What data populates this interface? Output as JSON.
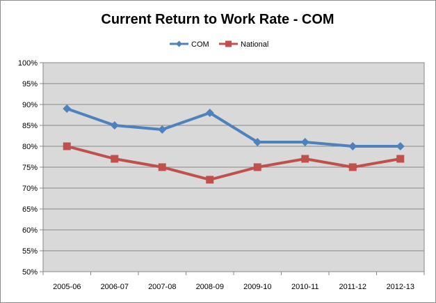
{
  "chart_data": {
    "type": "line",
    "title": "Current Return to Work Rate - COM",
    "xlabel": "",
    "ylabel": "",
    "categories": [
      "2005-06",
      "2006-07",
      "2007-08",
      "2008-09",
      "2009-10",
      "2010-11",
      "2011-12",
      "2012-13"
    ],
    "series": [
      {
        "name": "COM",
        "values": [
          89,
          85,
          84,
          88,
          81,
          81,
          80,
          80
        ],
        "color": "#4f81bd",
        "marker": "diamond"
      },
      {
        "name": "National",
        "values": [
          80,
          77,
          75,
          72,
          75,
          77,
          75,
          77
        ],
        "color": "#c0504d",
        "marker": "square"
      }
    ],
    "ylim": [
      50,
      100
    ],
    "ytick_step": 5,
    "ytick_format": "percent",
    "ytick_labels": [
      "50%",
      "55%",
      "60%",
      "65%",
      "70%",
      "75%",
      "80%",
      "85%",
      "90%",
      "95%",
      "100%"
    ],
    "grid": true,
    "plot_background": "#d9d9d9",
    "legend_position": "top-center"
  }
}
